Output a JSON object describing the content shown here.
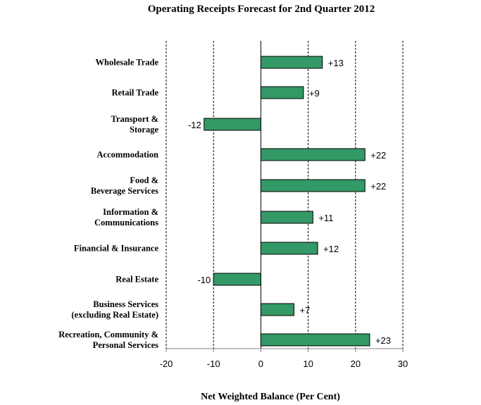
{
  "chart_data": {
    "type": "bar",
    "orientation": "horizontal",
    "title": "Operating Receipts Forecast for 2nd Quarter 2012",
    "xlabel": "Net Weighted Balance (Per Cent)",
    "ylabel": "",
    "xlim": [
      -20,
      30
    ],
    "xticks": [
      "-20",
      "-10",
      "0",
      "10",
      "20",
      "30"
    ],
    "xtick_values": [
      -20,
      -10,
      0,
      10,
      20,
      30
    ],
    "gridlines": "vertical-dashed",
    "bar_color": "#339966",
    "categories": [
      [
        "Wholesale Trade"
      ],
      [
        "Retail Trade"
      ],
      [
        "Transport &",
        "Storage"
      ],
      [
        "Accommodation"
      ],
      [
        "Food &",
        "Beverage Services"
      ],
      [
        "Information &",
        "Communications"
      ],
      [
        "Financial & Insurance"
      ],
      [
        "Real Estate"
      ],
      [
        "Business Services",
        "(excluding Real Estate)"
      ],
      [
        "Recreation, Community &",
        "Personal Services"
      ]
    ],
    "values": [
      13,
      9,
      -12,
      22,
      22,
      11,
      12,
      -10,
      7,
      23
    ],
    "data_labels": [
      "+13",
      "+9",
      "-12",
      "+22",
      "+22",
      "+11",
      "+12",
      "-10",
      "+7",
      "+23"
    ]
  }
}
